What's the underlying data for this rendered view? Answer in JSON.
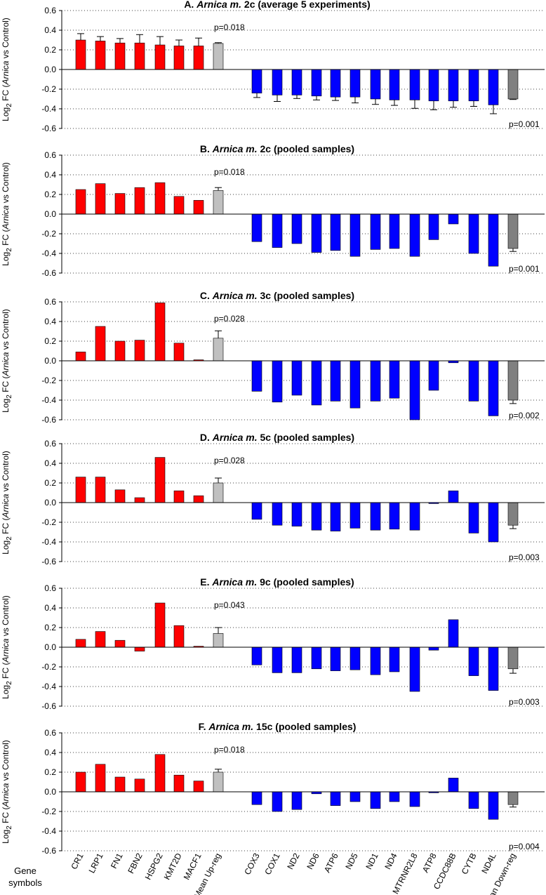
{
  "chart_data": {
    "type": "bar",
    "categories": [
      "CR1",
      "LRP1",
      "FN1",
      "FBN2",
      "HSPG2",
      "KMT2D",
      "MACF1",
      "Mean Up-reg",
      "COX3",
      "COX1",
      "ND2",
      "ND6",
      "ATP6",
      "ND5",
      "ND1",
      "ND4",
      "MTRNR2L8",
      "ATP8",
      "CCDC88B",
      "CYTB",
      "ND4L",
      "Mean Down-reg"
    ],
    "gene_label_line1": "Gene",
    "gene_label_line2": "symbols",
    "ylabel": {
      "pre": "Log",
      "sub": "2",
      "mid": " FC (",
      "italic": "Arnica",
      "post": " vs Control)"
    },
    "yticks": [
      "0.6",
      "0.4",
      "0.2",
      "0.0",
      "-0.2",
      "-0.4",
      "-0.6"
    ],
    "ylim": [
      -0.6,
      0.6
    ],
    "colors": {
      "up": "#ff0000",
      "down": "#0000ff",
      "mean_up": "#c0c0c0",
      "mean_down": "#808080",
      "edge": "#000000"
    },
    "panels": [
      {
        "title_prefix": "A. ",
        "title_italic": "Arnica m.",
        "title_suffix": " 2c (average 5 experiments)",
        "values": [
          0.3,
          0.29,
          0.27,
          0.27,
          0.25,
          0.24,
          0.24,
          0.265,
          -0.24,
          -0.26,
          -0.26,
          -0.27,
          -0.28,
          -0.28,
          -0.3,
          -0.31,
          -0.31,
          -0.32,
          -0.32,
          -0.32,
          -0.36,
          -0.3
        ],
        "errors": [
          0.065,
          0.045,
          0.045,
          0.085,
          0.085,
          0.06,
          0.08,
          0.008,
          0.045,
          0.065,
          0.035,
          0.04,
          0.035,
          0.06,
          0.055,
          0.055,
          0.085,
          0.09,
          0.065,
          0.055,
          0.09,
          0.005
        ],
        "p_up": "p=0.018",
        "p_down": "p=0.001"
      },
      {
        "title_prefix": "B. ",
        "title_italic": "Arnica m.",
        "title_suffix": " 2c (pooled samples)",
        "values": [
          0.25,
          0.31,
          0.21,
          0.27,
          0.32,
          0.18,
          0.14,
          0.24,
          -0.28,
          -0.34,
          -0.3,
          -0.39,
          -0.37,
          -0.43,
          -0.36,
          -0.35,
          -0.43,
          -0.26,
          -0.1,
          -0.4,
          -0.53,
          -0.35
        ],
        "errors": [
          0,
          0,
          0,
          0,
          0,
          0,
          0,
          0.03,
          0,
          0,
          0,
          0,
          0,
          0,
          0,
          0,
          0,
          0,
          0,
          0,
          0,
          0.03
        ],
        "p_up": "p=0.018",
        "p_down": "p=0.001"
      },
      {
        "title_prefix": "C. ",
        "title_italic": "Arnica m.",
        "title_suffix": " 3c (pooled samples)",
        "values": [
          0.09,
          0.35,
          0.2,
          0.21,
          0.59,
          0.18,
          0.01,
          0.23,
          -0.31,
          -0.42,
          -0.35,
          -0.45,
          -0.41,
          -0.48,
          -0.41,
          -0.38,
          -0.6,
          -0.3,
          -0.02,
          -0.41,
          -0.56,
          -0.4
        ],
        "errors": [
          0,
          0,
          0,
          0,
          0,
          0,
          0,
          0.075,
          0,
          0,
          0,
          0,
          0,
          0,
          0,
          0,
          0,
          0,
          0,
          0,
          0,
          0.035
        ],
        "p_up": "p=0.028",
        "p_down": "p=0.002"
      },
      {
        "title_prefix": "D. ",
        "title_italic": "Arnica m.",
        "title_suffix": " 5c (pooled samples)",
        "values": [
          0.26,
          0.26,
          0.13,
          0.05,
          0.46,
          0.12,
          0.07,
          0.2,
          -0.17,
          -0.23,
          -0.24,
          -0.28,
          -0.29,
          -0.26,
          -0.28,
          -0.27,
          -0.28,
          -0.01,
          0.12,
          -0.31,
          -0.4,
          -0.23
        ],
        "errors": [
          0,
          0,
          0,
          0,
          0,
          0,
          0,
          0.05,
          0,
          0,
          0,
          0,
          0,
          0,
          0,
          0,
          0,
          0,
          0,
          0,
          0,
          0.035
        ],
        "p_up": "p=0.028",
        "p_down": "p=0.003"
      },
      {
        "title_prefix": "E. ",
        "title_italic": "Arnica m.",
        "title_suffix": " 9c (pooled samples)",
        "values": [
          0.08,
          0.16,
          0.07,
          -0.04,
          0.45,
          0.22,
          0.01,
          0.14,
          -0.18,
          -0.26,
          -0.26,
          -0.22,
          -0.24,
          -0.23,
          -0.28,
          -0.25,
          -0.45,
          -0.03,
          0.28,
          -0.29,
          -0.44,
          -0.22
        ],
        "errors": [
          0,
          0,
          0,
          0,
          0,
          0,
          0,
          0.06,
          0,
          0,
          0,
          0,
          0,
          0,
          0,
          0,
          0,
          0,
          0,
          0,
          0,
          0.045
        ],
        "p_up": "p=0.043",
        "p_down": "p=0.003"
      },
      {
        "title_prefix": "F. ",
        "title_italic": "Arnica m.",
        "title_suffix": " 15c (pooled samples)",
        "values": [
          0.2,
          0.28,
          0.15,
          0.13,
          0.38,
          0.17,
          0.11,
          0.2,
          -0.13,
          -0.2,
          -0.18,
          -0.02,
          -0.14,
          -0.1,
          -0.17,
          -0.1,
          -0.15,
          -0.01,
          0.14,
          -0.17,
          -0.28,
          -0.13
        ],
        "errors": [
          0,
          0,
          0,
          0,
          0,
          0,
          0,
          0.03,
          0,
          0,
          0,
          0,
          0,
          0,
          0,
          0,
          0,
          0,
          0,
          0,
          0,
          0.025
        ],
        "p_up": "p=0.018",
        "p_down": "p=0.004"
      }
    ]
  }
}
